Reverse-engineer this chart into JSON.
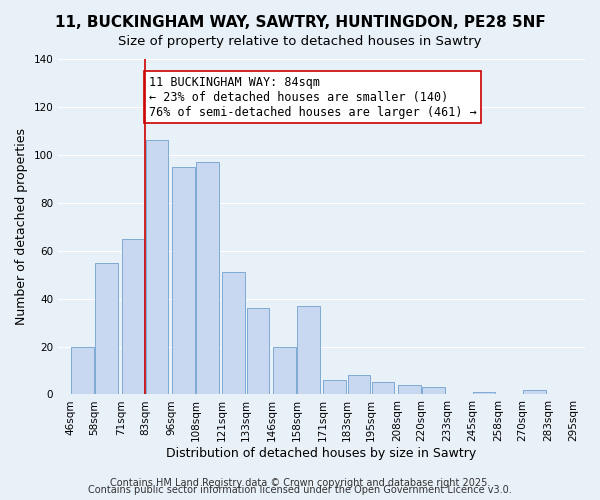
{
  "title": "11, BUCKINGHAM WAY, SAWTRY, HUNTINGDON, PE28 5NF",
  "subtitle": "Size of property relative to detached houses in Sawtry",
  "xlabel": "Distribution of detached houses by size in Sawtry",
  "ylabel": "Number of detached properties",
  "bins": [
    46,
    58,
    71,
    83,
    96,
    108,
    121,
    133,
    146,
    158,
    171,
    183,
    195,
    208,
    220,
    233,
    245,
    258,
    270,
    283,
    295
  ],
  "bar_heights": [
    20,
    55,
    65,
    106,
    95,
    97,
    51,
    36,
    20,
    37,
    6,
    8,
    5,
    4,
    3,
    0,
    1,
    0,
    2,
    0
  ],
  "bar_color": "#c8d8f0",
  "bar_edge_color": "#7eaad4",
  "vline_x": 83,
  "vline_color": "#cc0000",
  "annotation_text": "11 BUCKINGHAM WAY: 84sqm\n← 23% of detached houses are smaller (140)\n76% of semi-detached houses are larger (461) →",
  "annotation_box_color": "#ffffff",
  "annotation_box_edge_color": "#cc0000",
  "ylim": [
    0,
    140
  ],
  "yticks": [
    0,
    20,
    40,
    60,
    80,
    100,
    120,
    140
  ],
  "background_color": "#e8f0f8",
  "footer_line1": "Contains HM Land Registry data © Crown copyright and database right 2025.",
  "footer_line2": "Contains public sector information licensed under the Open Government Licence v3.0.",
  "title_fontsize": 11,
  "subtitle_fontsize": 9.5,
  "axis_label_fontsize": 9,
  "tick_fontsize": 7.5,
  "annotation_fontsize": 8.5,
  "footer_fontsize": 7
}
